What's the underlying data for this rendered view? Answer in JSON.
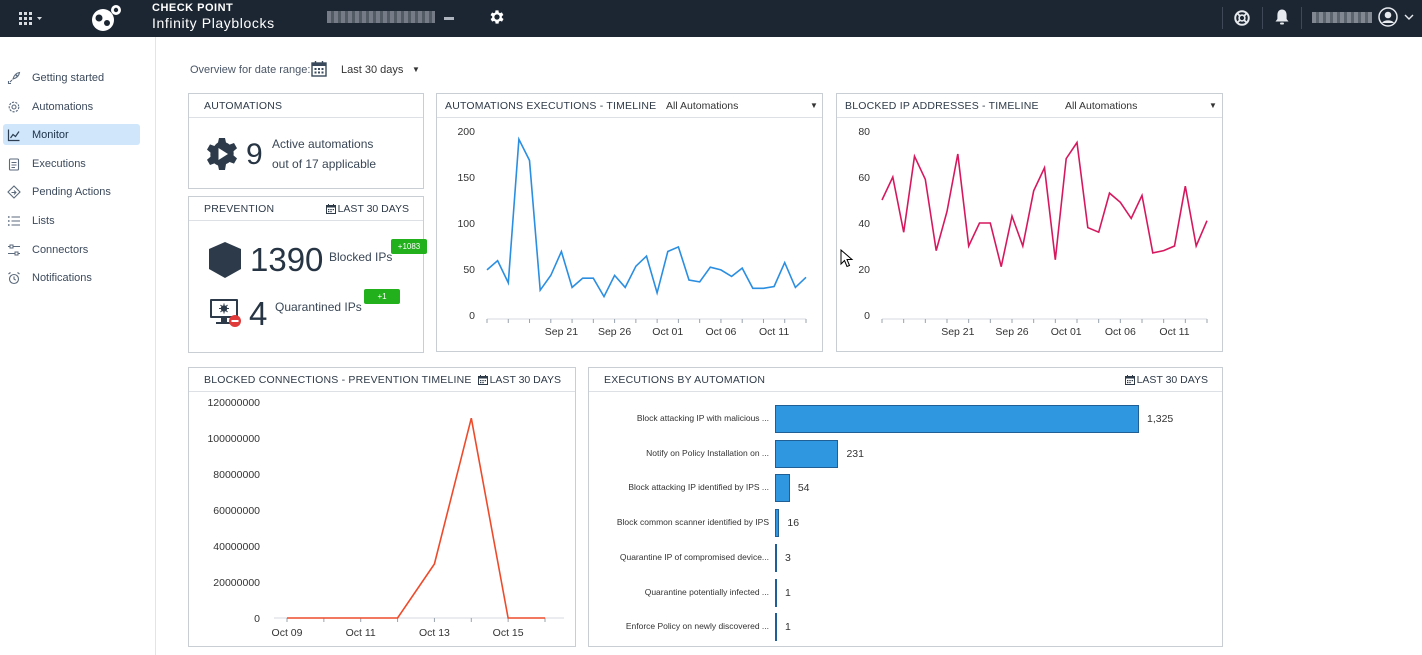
{
  "app": {
    "brand_line1": "CHECK POINT",
    "brand_line2": "Infinity Playblocks",
    "app_switcher_icon": "grid-icon",
    "settings_icon": "gear-icon",
    "help_icon": "lifebuoy-icon",
    "notifications_icon": "bell-icon",
    "user_icon": "user-avatar-icon"
  },
  "sidebar": {
    "items": [
      {
        "label": "Getting started",
        "icon": "rocket-icon",
        "active": false
      },
      {
        "label": "Automations",
        "icon": "cog-icon",
        "active": false
      },
      {
        "label": "Monitor",
        "icon": "chart-icon",
        "active": true
      },
      {
        "label": "Executions",
        "icon": "clipboard-icon",
        "active": false
      },
      {
        "label": "Pending Actions",
        "icon": "diamond-arrow-icon",
        "active": false
      },
      {
        "label": "Lists",
        "icon": "list-icon",
        "active": false
      },
      {
        "label": "Connectors",
        "icon": "sliders-icon",
        "active": false
      },
      {
        "label": "Notifications",
        "icon": "alarm-icon",
        "active": false
      }
    ]
  },
  "overview": {
    "label": "Overview for date range:",
    "value": "Last 30 days"
  },
  "automations_card": {
    "title": "AUTOMATIONS",
    "count": "9",
    "line1": "Active automations",
    "line2": "out of 17 applicable"
  },
  "prevention_card": {
    "title": "PREVENTION",
    "range": "LAST 30 DAYS",
    "blocked_count": "1390",
    "blocked_label": "Blocked IPs",
    "blocked_badge": "+1083",
    "quarantined_count": "4",
    "quarantined_label": "Quarantined IPs",
    "quarantined_badge": "+1"
  },
  "exec_timeline_card": {
    "title": "AUTOMATIONS EXECUTIONS - TIMELINE",
    "select": "All Automations"
  },
  "blocked_ip_card": {
    "title": "BLOCKED IP ADDRESSES - TIMELINE",
    "select": "All Automations"
  },
  "connections_card": {
    "title": "BLOCKED CONNECTIONS - PREVENTION TIMELINE",
    "range": "LAST 30 DAYS"
  },
  "exec_by_automation_card": {
    "title": "EXECUTIONS BY AUTOMATION",
    "range": "LAST 30 DAYS"
  },
  "colors": {
    "topbar": "#1c2633",
    "blue_line": "#2b8ee0",
    "pink_line": "#d6195e",
    "orange_line": "#ee4b2b",
    "bar_fill": "#2f97e0",
    "badge": "#22b01c",
    "nav_active": "#cfe6fb"
  },
  "chart_data": [
    {
      "id": "executions-timeline",
      "type": "line",
      "x_ticks": [
        "Sep 21",
        "Sep 26",
        "Oct 01",
        "Oct 06",
        "Oct 11"
      ],
      "y_ticks": [
        0,
        50,
        100,
        150,
        200
      ],
      "ylim": [
        0,
        200
      ],
      "color": "#2b8ee0",
      "values": [
        49,
        59,
        35,
        191,
        168,
        27,
        43,
        69,
        30,
        40,
        40,
        20,
        43,
        30,
        53,
        64,
        24,
        69,
        74,
        38,
        36,
        52,
        49,
        42,
        51,
        29,
        29,
        31,
        57,
        30,
        41
      ]
    },
    {
      "id": "blocked-ips-timeline",
      "type": "line",
      "x_ticks": [
        "Sep 21",
        "Sep 26",
        "Oct 01",
        "Oct 06",
        "Oct 11"
      ],
      "y_ticks": [
        0,
        20,
        40,
        60,
        80
      ],
      "ylim": [
        0,
        80
      ],
      "color": "#d6195e",
      "values": [
        50,
        60,
        36,
        69,
        59,
        28,
        45,
        70,
        30,
        40,
        40,
        21,
        43,
        30,
        54,
        64,
        24,
        68,
        75,
        38,
        36,
        53,
        49,
        42,
        52,
        27,
        28,
        30,
        56,
        30,
        41
      ]
    },
    {
      "id": "blocked-connections-timeline",
      "type": "line",
      "x_ticks": [
        "Oct 09",
        "Oct 11",
        "Oct 13",
        "Oct 15"
      ],
      "y_ticks": [
        0,
        20000000,
        40000000,
        60000000,
        80000000,
        100000000,
        120000000
      ],
      "ylim": [
        0,
        120000000
      ],
      "color": "#ee4b2b",
      "x": [
        "Oct 09",
        "Oct 10",
        "Oct 11",
        "Oct 12",
        "Oct 13",
        "Oct 14",
        "Oct 15",
        "Oct 16"
      ],
      "values": [
        0,
        0,
        0,
        0,
        30000000,
        111000000,
        0,
        0
      ]
    },
    {
      "id": "executions-by-automation",
      "type": "bar",
      "orientation": "horizontal",
      "color": "#2f97e0",
      "categories": [
        "Block attacking IP with malicious ...",
        "Notify on Policy Installation on ...",
        "Block attacking IP identified by IPS ...",
        "Block common scanner identified by IPS",
        "Quarantine IP of compromised device...",
        "Quarantine potentially infected ...",
        "Enforce Policy on newly discovered ..."
      ],
      "values": [
        1325,
        231,
        54,
        16,
        3,
        1,
        1
      ],
      "value_labels": [
        "1,325",
        "231",
        "54",
        "16",
        "3",
        "1",
        "1"
      ]
    }
  ]
}
